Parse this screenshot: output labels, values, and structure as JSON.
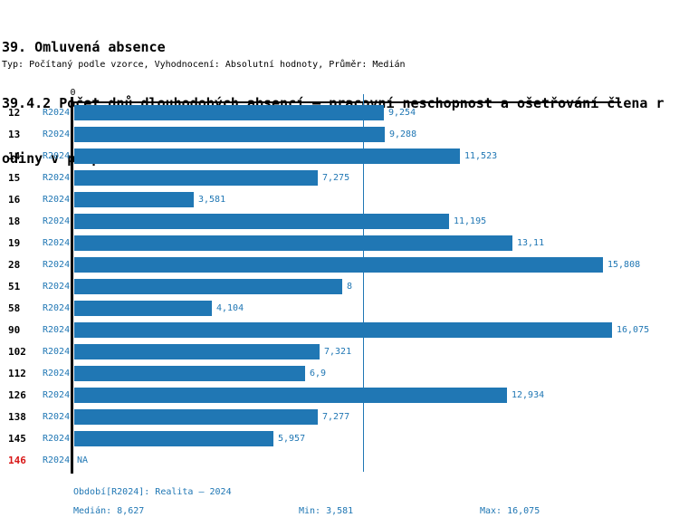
{
  "title": "39. Omluvená absence",
  "subtitle_line1": "39.4.2 Počet dnů dlouhodobých absencí – pracovní neschopnost a ošetřování člena r",
  "subtitle_line2": "odiny v přepočtu na zaměstnance",
  "meta_line": "Typ: Počítaný podle vzorce, Vyhodnocení: Absolutní hodnoty, Průměr: Medián",
  "colors": {
    "accent_blue": "#2077b4",
    "bar_blue": "#2077b4",
    "median_line_blue": "#2077b4",
    "na_id_red": "#d81616",
    "axis_black": "#000000"
  },
  "chart_data": {
    "type": "bar",
    "orientation": "horizontal",
    "title": "39.4.2 Počet dnů dlouhodobých absencí – pracovní neschopnost a ošetřování člena rodiny v přepočtu na zaměstnance",
    "xlabel": "",
    "ylabel": "",
    "axis_zero_label": "0",
    "xlim": [
      0,
      16.35
    ],
    "grid": false,
    "legend": "none",
    "median_value": 8.627,
    "period_label": "R2024",
    "rows": [
      {
        "id": "12",
        "period": "R2024",
        "value": 9.254,
        "label": "9,254",
        "highlight": false
      },
      {
        "id": "13",
        "period": "R2024",
        "value": 9.288,
        "label": "9,288",
        "highlight": false
      },
      {
        "id": "14",
        "period": "R2024",
        "value": 11.523,
        "label": "11,523",
        "highlight": false
      },
      {
        "id": "15",
        "period": "R2024",
        "value": 7.275,
        "label": "7,275",
        "highlight": false
      },
      {
        "id": "16",
        "period": "R2024",
        "value": 3.581,
        "label": "3,581",
        "highlight": false
      },
      {
        "id": "18",
        "period": "R2024",
        "value": 11.195,
        "label": "11,195",
        "highlight": false
      },
      {
        "id": "19",
        "period": "R2024",
        "value": 13.11,
        "label": "13,11",
        "highlight": false
      },
      {
        "id": "28",
        "period": "R2024",
        "value": 15.808,
        "label": "15,808",
        "highlight": false
      },
      {
        "id": "51",
        "period": "R2024",
        "value": 8,
        "label": "8",
        "highlight": false
      },
      {
        "id": "58",
        "period": "R2024",
        "value": 4.104,
        "label": "4,104",
        "highlight": false
      },
      {
        "id": "90",
        "period": "R2024",
        "value": 16.075,
        "label": "16,075",
        "highlight": false
      },
      {
        "id": "102",
        "period": "R2024",
        "value": 7.321,
        "label": "7,321",
        "highlight": false
      },
      {
        "id": "112",
        "period": "R2024",
        "value": 6.9,
        "label": "6,9",
        "highlight": false
      },
      {
        "id": "126",
        "period": "R2024",
        "value": 12.934,
        "label": "12,934",
        "highlight": false
      },
      {
        "id": "138",
        "period": "R2024",
        "value": 7.277,
        "label": "7,277",
        "highlight": false
      },
      {
        "id": "145",
        "period": "R2024",
        "value": 5.957,
        "label": "5,957",
        "highlight": false
      },
      {
        "id": "146",
        "period": "R2024",
        "value": null,
        "label": "NA",
        "highlight": true
      }
    ]
  },
  "footer": {
    "period_info": "Období[R2024]: Realita – 2024",
    "median": "Medián: 8,627",
    "min": "Min: 3,581",
    "max": "Max: 16,075"
  }
}
